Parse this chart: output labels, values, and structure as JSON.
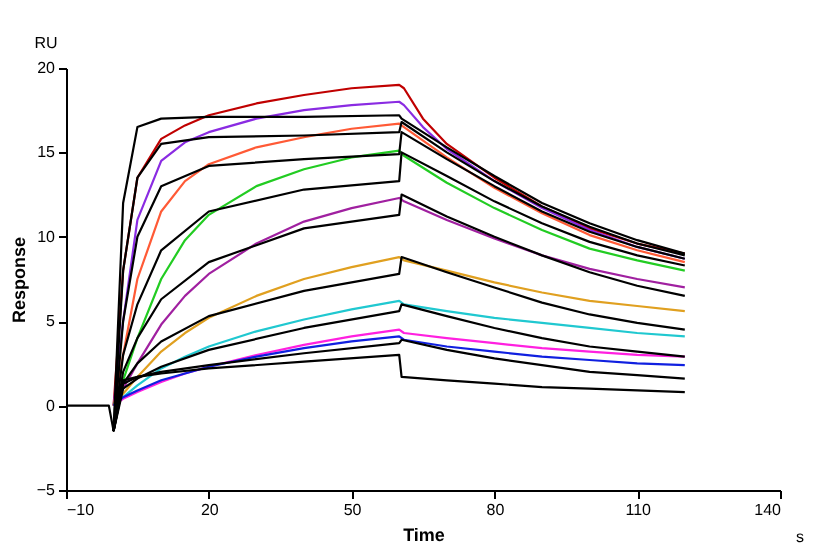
{
  "chart_data": {
    "type": "line",
    "xlabel": "Time",
    "ylabel": "Response",
    "annotations": [
      "RU",
      "s"
    ],
    "xlim": [
      -10,
      140
    ],
    "xticks": [
      -10,
      20,
      50,
      80,
      110,
      140
    ],
    "ylim": [
      -5,
      20
    ],
    "yticks": [
      -5,
      0,
      5,
      10,
      15,
      20
    ],
    "grid": false,
    "marker": "none",
    "line_style": "solid",
    "series": [
      {
        "color": "#c00000",
        "x": [
          0,
          2,
          5,
          10,
          15,
          20,
          30,
          40,
          50,
          60,
          61,
          65,
          70,
          80,
          90,
          100,
          110,
          120
        ],
        "values": [
          0,
          8,
          13.5,
          15.8,
          16.6,
          17.2,
          17.9,
          18.4,
          18.8,
          19.0,
          18.8,
          17.0,
          15.5,
          13.5,
          11.8,
          10.5,
          9.6,
          9.0
        ]
      },
      {
        "color": "#8a2be2",
        "x": [
          0,
          2,
          5,
          10,
          15,
          20,
          30,
          40,
          50,
          60,
          61,
          65,
          70,
          80,
          90,
          100,
          110,
          120
        ],
        "values": [
          0,
          5,
          11,
          14.5,
          15.6,
          16.2,
          17.0,
          17.5,
          17.8,
          18.0,
          17.8,
          16.5,
          15.2,
          13.3,
          11.7,
          10.4,
          9.4,
          8.7
        ]
      },
      {
        "color": "#ff5a36",
        "x": [
          0,
          2,
          5,
          10,
          15,
          20,
          30,
          40,
          50,
          60,
          61,
          70,
          80,
          90,
          100,
          110,
          120
        ],
        "values": [
          0,
          3,
          7.5,
          11.5,
          13.3,
          14.3,
          15.3,
          15.9,
          16.4,
          16.7,
          16.5,
          14.7,
          12.9,
          11.4,
          10.1,
          9.2,
          8.5
        ]
      },
      {
        "color": "#22cc22",
        "x": [
          0,
          2,
          5,
          10,
          15,
          20,
          30,
          40,
          50,
          60,
          61,
          70,
          80,
          90,
          100,
          110,
          120
        ],
        "values": [
          0,
          1.5,
          4,
          7.5,
          9.8,
          11.3,
          13.0,
          14.0,
          14.7,
          15.1,
          14.8,
          13.2,
          11.7,
          10.4,
          9.3,
          8.6,
          8.0
        ]
      },
      {
        "color": "#a020a0",
        "x": [
          0,
          2,
          5,
          10,
          15,
          20,
          30,
          40,
          50,
          60,
          61,
          70,
          80,
          90,
          100,
          110,
          120
        ],
        "values": [
          0,
          1,
          2.5,
          4.8,
          6.5,
          7.8,
          9.6,
          10.9,
          11.7,
          12.3,
          12.1,
          11.0,
          9.9,
          8.9,
          8.1,
          7.5,
          7.0
        ]
      },
      {
        "color": "#e0a020",
        "x": [
          0,
          2,
          5,
          10,
          15,
          20,
          30,
          40,
          50,
          60,
          61,
          70,
          80,
          90,
          100,
          110,
          120
        ],
        "values": [
          0,
          0.7,
          1.7,
          3.2,
          4.3,
          5.2,
          6.5,
          7.5,
          8.2,
          8.8,
          8.6,
          8.0,
          7.3,
          6.7,
          6.2,
          5.9,
          5.6
        ]
      },
      {
        "color": "#20c8d0",
        "x": [
          0,
          2,
          5,
          10,
          15,
          20,
          30,
          40,
          50,
          60,
          61,
          70,
          80,
          90,
          100,
          110,
          120
        ],
        "values": [
          0,
          0.5,
          1.2,
          2.2,
          2.9,
          3.5,
          4.4,
          5.1,
          5.7,
          6.2,
          6.0,
          5.6,
          5.2,
          4.9,
          4.6,
          4.3,
          4.1
        ]
      },
      {
        "color": "#ff20e0",
        "x": [
          0,
          2,
          5,
          10,
          15,
          20,
          30,
          40,
          50,
          60,
          61,
          70,
          80,
          90,
          100,
          110,
          120
        ],
        "values": [
          0,
          0.4,
          0.8,
          1.4,
          1.9,
          2.3,
          3.0,
          3.6,
          4.1,
          4.5,
          4.3,
          4.0,
          3.7,
          3.4,
          3.2,
          3.0,
          2.9
        ]
      },
      {
        "color": "#1020e0",
        "x": [
          0,
          2,
          5,
          10,
          15,
          20,
          30,
          40,
          50,
          60,
          61,
          70,
          80,
          90,
          100,
          110,
          120
        ],
        "values": [
          0,
          0.5,
          0.9,
          1.5,
          1.9,
          2.3,
          2.9,
          3.4,
          3.8,
          4.1,
          3.9,
          3.5,
          3.2,
          2.9,
          2.7,
          2.5,
          2.4
        ]
      },
      {
        "color": "#000000",
        "x": [
          0,
          2,
          5,
          10,
          20,
          40,
          60,
          60.5,
          70,
          80,
          90,
          100,
          110,
          120
        ],
        "values": [
          -1.5,
          12,
          16.5,
          17.0,
          17.1,
          17.1,
          17.2,
          17.0,
          15.3,
          13.6,
          12.0,
          10.8,
          9.8,
          9.0
        ]
      },
      {
        "color": "#000000",
        "x": [
          0,
          2,
          5,
          10,
          20,
          40,
          60,
          60.5,
          70,
          80,
          90,
          100,
          110,
          120
        ],
        "values": [
          -1.5,
          8,
          13.5,
          15.5,
          15.9,
          16.0,
          16.2,
          16.8,
          15.0,
          13.3,
          11.8,
          10.6,
          9.6,
          8.9
        ]
      },
      {
        "color": "#000000",
        "x": [
          0,
          2,
          5,
          10,
          20,
          40,
          60,
          60.5,
          70,
          80,
          90,
          100,
          110,
          120
        ],
        "values": [
          -1.5,
          5,
          10,
          13.0,
          14.2,
          14.6,
          14.9,
          16.2,
          14.6,
          13.0,
          11.5,
          10.3,
          9.4,
          8.7
        ]
      },
      {
        "color": "#000000",
        "x": [
          0,
          2,
          5,
          10,
          20,
          40,
          60,
          60.5,
          70,
          80,
          90,
          100,
          110,
          120
        ],
        "values": [
          -1.5,
          3,
          6,
          9.2,
          11.5,
          12.8,
          13.3,
          15.0,
          13.6,
          12.1,
          10.8,
          9.7,
          8.9,
          8.3
        ]
      },
      {
        "color": "#000000",
        "x": [
          0,
          2,
          5,
          10,
          20,
          40,
          60,
          60.5,
          70,
          80,
          90,
          100,
          110,
          120
        ],
        "values": [
          -1.5,
          2,
          4,
          6.3,
          8.5,
          10.5,
          11.3,
          12.5,
          11.2,
          10.0,
          8.9,
          7.9,
          7.1,
          6.5
        ]
      },
      {
        "color": "#000000",
        "x": [
          0,
          2,
          5,
          10,
          20,
          40,
          60,
          60.5,
          70,
          80,
          90,
          100,
          110,
          120
        ],
        "values": [
          -1.5,
          1.3,
          2.5,
          3.8,
          5.3,
          6.8,
          7.8,
          8.8,
          7.9,
          7.0,
          6.1,
          5.4,
          4.9,
          4.5
        ]
      },
      {
        "color": "#000000",
        "x": [
          0,
          2,
          5,
          10,
          20,
          40,
          60,
          60.5,
          70,
          80,
          90,
          100,
          110,
          120
        ],
        "values": [
          -1.5,
          1.0,
          1.6,
          2.3,
          3.3,
          4.6,
          5.6,
          6.0,
          5.3,
          4.6,
          4.0,
          3.5,
          3.2,
          2.9
        ]
      },
      {
        "color": "#000000",
        "x": [
          0,
          2,
          5,
          10,
          20,
          40,
          60,
          60.5,
          70,
          80,
          90,
          100,
          110,
          120
        ],
        "values": [
          -1.5,
          1.3,
          1.7,
          2.0,
          2.4,
          3.1,
          3.7,
          3.9,
          3.3,
          2.8,
          2.4,
          2.0,
          1.8,
          1.6
        ]
      },
      {
        "color": "#000000",
        "x": [
          -10,
          -1,
          0,
          2,
          5,
          10,
          20,
          40,
          60,
          60.5,
          70,
          80,
          90,
          100,
          110,
          120
        ],
        "values": [
          0,
          0,
          -1.5,
          1.5,
          1.7,
          1.9,
          2.2,
          2.6,
          3.0,
          1.7,
          1.5,
          1.3,
          1.1,
          1.0,
          0.9,
          0.8
        ]
      }
    ]
  }
}
